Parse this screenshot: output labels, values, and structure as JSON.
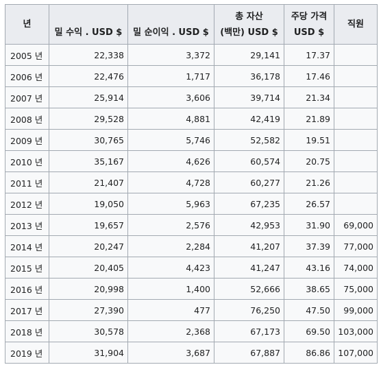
{
  "table": {
    "headers": [
      {
        "lines": [
          "년"
        ]
      },
      {
        "lines": [
          "",
          "밀 수익 . USD $"
        ]
      },
      {
        "lines": [
          "",
          "밀 순이익 . USD $"
        ]
      },
      {
        "lines": [
          "총 자산",
          "(백만) USD $"
        ]
      },
      {
        "lines": [
          "주당 가격",
          "USD $"
        ]
      },
      {
        "lines": [
          "직원"
        ]
      }
    ],
    "rows": [
      [
        "2005 년",
        "22,338",
        "3,372",
        "29,141",
        "17.37",
        ""
      ],
      [
        "2006 년",
        "22,476",
        "1,717",
        "36,178",
        "17.46",
        ""
      ],
      [
        "2007 년",
        "25,914",
        "3,606",
        "39,714",
        "21.34",
        ""
      ],
      [
        "2008 년",
        "29,528",
        "4,881",
        "42,419",
        "21.89",
        ""
      ],
      [
        "2009 년",
        "30,765",
        "5,746",
        "52,582",
        "19.51",
        ""
      ],
      [
        "2010 년",
        "35,167",
        "4,626",
        "60,574",
        "20.75",
        ""
      ],
      [
        "2011 년",
        "21,407",
        "4,728",
        "60,277",
        "21.26",
        ""
      ],
      [
        "2012 년",
        "19,050",
        "5,963",
        "67,235",
        "26.57",
        ""
      ],
      [
        "2013 년",
        "19,657",
        "2,576",
        "42,953",
        "31.90",
        "69,000"
      ],
      [
        "2014 년",
        "20,247",
        "2,284",
        "41,207",
        "37.39",
        "77,000"
      ],
      [
        "2015 년",
        "20,405",
        "4,423",
        "41,247",
        "43.16",
        "74,000"
      ],
      [
        "2016 년",
        "20,998",
        "1,400",
        "52,666",
        "38.65",
        "75,000"
      ],
      [
        "2017 년",
        "27,390",
        "477",
        "76,250",
        "47.50",
        "99,000"
      ],
      [
        "2018 년",
        "30,578",
        "2,368",
        "67,173",
        "69.50",
        "103,000"
      ],
      [
        "2019 년",
        "31,904",
        "3,687",
        "67,887",
        "86.86",
        "107,000"
      ]
    ]
  }
}
